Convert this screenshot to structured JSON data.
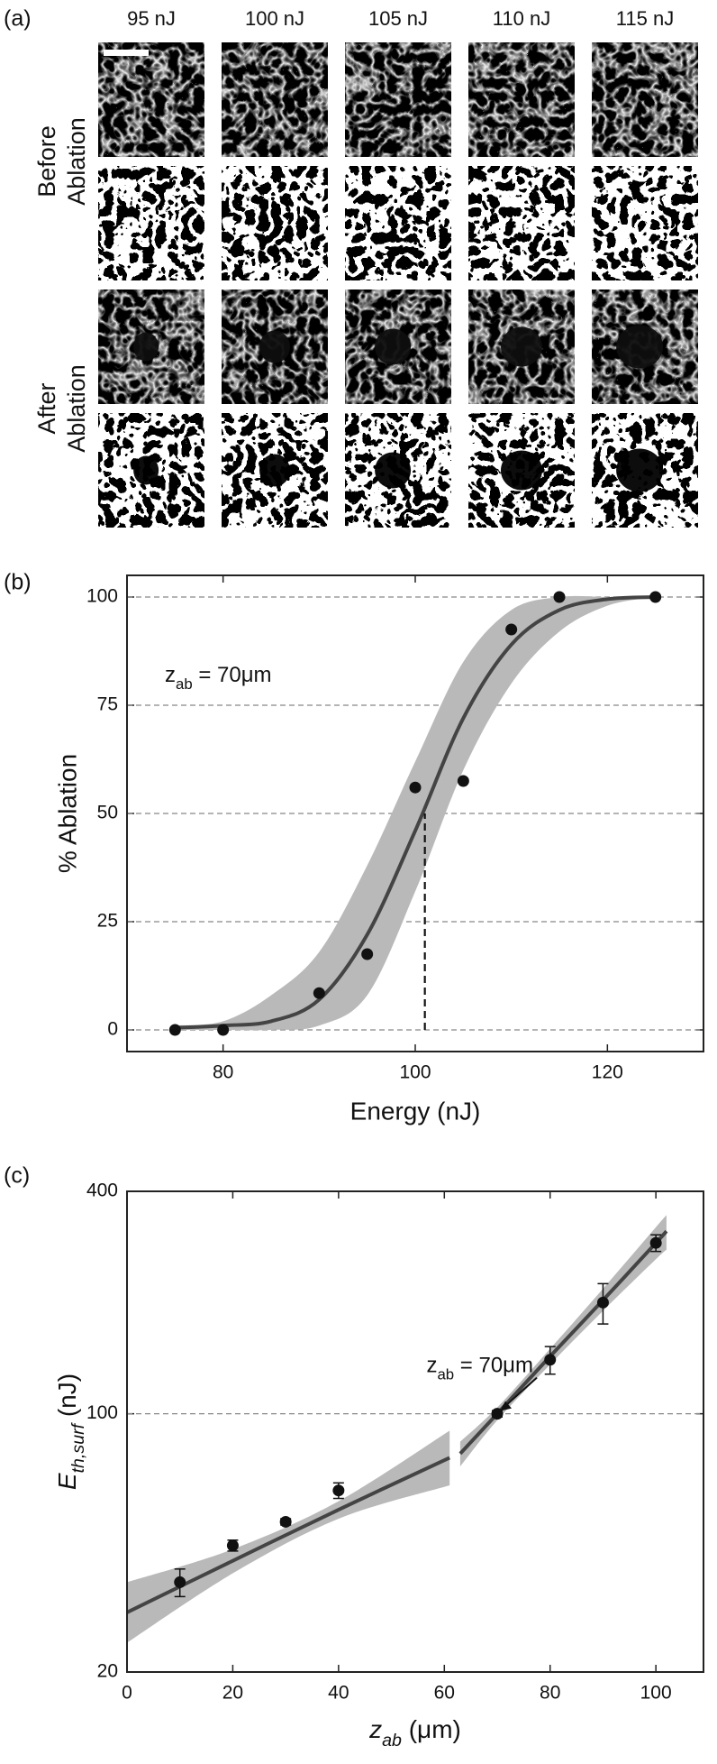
{
  "panel_a": {
    "label": "(a)",
    "columns": [
      "95 nJ",
      "100 nJ",
      "105 nJ",
      "110 nJ",
      "115 nJ"
    ],
    "rows": [
      [
        "Before",
        "Ablation"
      ],
      [
        "After",
        "Ablation"
      ]
    ]
  },
  "chart_data": [
    {
      "type": "scatter",
      "panel_label": "(b)",
      "annotation": {
        "text": "z",
        "subscript": "ab",
        "rest": " = 70μm"
      },
      "x": [
        75,
        80,
        90,
        95,
        100,
        105,
        110,
        115,
        125
      ],
      "values": [
        0,
        0,
        8.5,
        17.5,
        56,
        57.5,
        92.5,
        100,
        100
      ],
      "color": "#111111",
      "fits": [
        {
          "x": [
            75,
            80,
            85,
            90,
            95,
            100,
            105,
            110,
            115,
            120,
            125
          ],
          "values": [
            0.5,
            1,
            2,
            7,
            22,
            46,
            72,
            89,
            97,
            99.5,
            100
          ],
          "lower": [
            0,
            0,
            0,
            1,
            8,
            32,
            60,
            80,
            92,
            98,
            100
          ],
          "upper": [
            1,
            2,
            8,
            18,
            38,
            62,
            85,
            97,
            100,
            100,
            100
          ]
        }
      ],
      "fit_color": "#444444",
      "band_color": "#b9b9b9",
      "threshold": {
        "x": 101,
        "y": 50
      },
      "xlim": [
        70,
        130
      ],
      "xticks": [
        80,
        100,
        120
      ],
      "ylim": [
        -5,
        105
      ],
      "yticks": [
        0,
        25,
        50,
        75,
        100
      ],
      "grid": true,
      "xlabel": "Energy (nJ)",
      "ylabel": "% Ablation"
    },
    {
      "type": "scatter",
      "panel_label": "(c)",
      "log_y": true,
      "annotation": {
        "text": "z",
        "subscript": "ab",
        "rest": " = 70μm",
        "x": 70,
        "y": 100
      },
      "x": [
        10,
        20,
        30,
        40,
        70,
        80,
        90,
        100
      ],
      "values": [
        35,
        44,
        51,
        62,
        100,
        140,
        200,
        290
      ],
      "errors": [
        3,
        1.5,
        1,
        3,
        2,
        12,
        25,
        15
      ],
      "color": "#111111",
      "fits": [
        {
          "x": [
            0,
            20,
            40,
            61
          ],
          "values": [
            29,
            40,
            55,
            76
          ],
          "lower": [
            24,
            37,
            52,
            64
          ],
          "upper": [
            35,
            43,
            58,
            90
          ]
        },
        {
          "x": [
            63,
            70,
            80,
            90,
            100,
            102
          ],
          "values": [
            78,
            100,
            143,
            203,
            290,
            312
          ],
          "lower": [
            72,
            96,
            136,
            190,
            262,
            278
          ],
          "upper": [
            84,
            104,
            150,
            218,
            320,
            345
          ]
        }
      ],
      "fit_color": "#444444",
      "band_color": "#b9b9b9",
      "ref_line": 100,
      "xlim": [
        0,
        109
      ],
      "xticks": [
        0,
        20,
        40,
        60,
        80,
        100
      ],
      "ylim": [
        20,
        400
      ],
      "yticks": [
        20,
        100,
        400
      ],
      "xlabel": {
        "text": "z",
        "subscript": "ab",
        "rest": " (μm)"
      },
      "ylabel": {
        "text": "E",
        "subscript": "th,surf",
        "rest": " (nJ)"
      }
    }
  ]
}
